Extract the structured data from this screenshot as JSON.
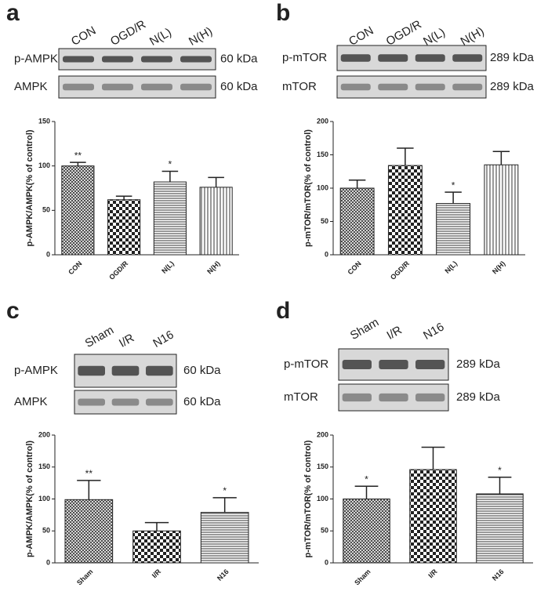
{
  "chart_data": [
    {
      "panel": "a",
      "type": "bar",
      "blot": {
        "lanes": [
          "CON",
          "OGD/R",
          "N(L)",
          "N(H)"
        ],
        "rows": [
          {
            "label": "p-AMPK",
            "kda": "60 kDa"
          },
          {
            "label": "AMPK",
            "kda": "60 kDa"
          }
        ]
      },
      "categories": [
        "CON",
        "OGD/R",
        "N(L)",
        "N(H)"
      ],
      "values": [
        100,
        62,
        82,
        76
      ],
      "errors": [
        4,
        4,
        12,
        11
      ],
      "annotations": [
        "**",
        null,
        "*",
        null
      ],
      "patterns": [
        "crosshatch",
        "checker",
        "hlines",
        "vlines"
      ],
      "ylabel": "p-AMPK/AMPK(% of control)",
      "ylim": [
        0,
        150
      ],
      "yticks": [
        0,
        50,
        100,
        150
      ]
    },
    {
      "panel": "b",
      "type": "bar",
      "blot": {
        "lanes": [
          "CON",
          "OGD/R",
          "N(L)",
          "N(H)"
        ],
        "rows": [
          {
            "label": "p-mTOR",
            "kda": "289 kDa"
          },
          {
            "label": "mTOR",
            "kda": "289 kDa"
          }
        ]
      },
      "categories": [
        "CON",
        "OGD/R",
        "N(L)",
        "N(H)"
      ],
      "values": [
        100,
        134,
        77,
        135
      ],
      "errors": [
        12,
        26,
        17,
        20
      ],
      "annotations": [
        null,
        null,
        "*",
        null
      ],
      "patterns": [
        "crosshatch",
        "checker",
        "hlines",
        "vlines"
      ],
      "ylabel": "p-mTOR/mTOR(% of control)",
      "ylim": [
        0,
        200
      ],
      "yticks": [
        0,
        50,
        100,
        150,
        200
      ]
    },
    {
      "panel": "c",
      "type": "bar",
      "blot": {
        "lanes": [
          "Sham",
          "I/R",
          "N16"
        ],
        "rows": [
          {
            "label": "p-AMPK",
            "kda": "60 kDa"
          },
          {
            "label": "AMPK",
            "kda": "60 kDa"
          }
        ]
      },
      "categories": [
        "Sham",
        "I/R",
        "N16"
      ],
      "values": [
        99,
        50,
        79
      ],
      "errors": [
        30,
        13,
        23
      ],
      "annotations": [
        "**",
        null,
        "*"
      ],
      "patterns": [
        "crosshatch",
        "checker",
        "hlines"
      ],
      "ylabel": "p-AMPK/AMPK(% of control)",
      "ylim": [
        0,
        200
      ],
      "yticks": [
        0,
        50,
        100,
        150,
        200
      ]
    },
    {
      "panel": "d",
      "type": "bar",
      "blot": {
        "lanes": [
          "Sham",
          "I/R",
          "N16"
        ],
        "rows": [
          {
            "label": "p-mTOR",
            "kda": "289 kDa"
          },
          {
            "label": "mTOR",
            "kda": "289 kDa"
          }
        ]
      },
      "categories": [
        "Sham",
        "I/R",
        "N16"
      ],
      "values": [
        100,
        146,
        108
      ],
      "errors": [
        20,
        35,
        26
      ],
      "annotations": [
        "*",
        null,
        "*"
      ],
      "patterns": [
        "crosshatch",
        "checker",
        "hlines"
      ],
      "ylabel": "p-mTOR/mTOR(% of control)",
      "ylim": [
        0,
        200
      ],
      "yticks": [
        0,
        50,
        100,
        150,
        200
      ]
    }
  ]
}
